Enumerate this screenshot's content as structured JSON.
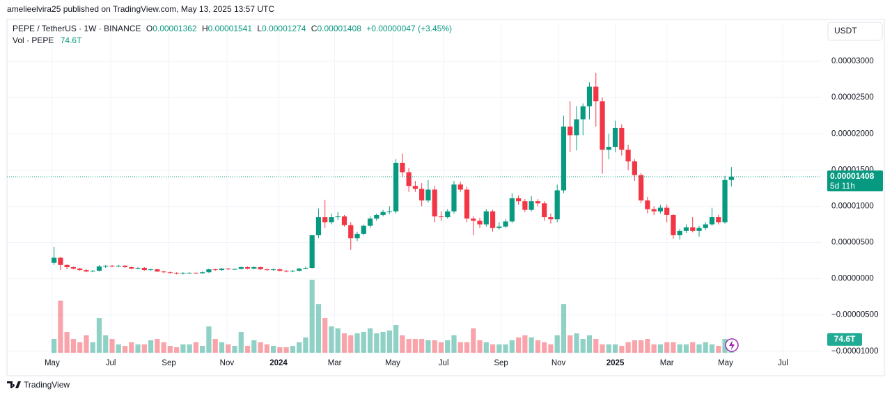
{
  "header": {
    "byline": "amelieelvira25 published on TradingView.com, May 13, 2025 13:57 UTC",
    "brand": "TradingView"
  },
  "chart_data": {
    "type": "candlestick",
    "legend": {
      "symbol": "PEPE / TetherUS · 1W · BINANCE",
      "o": "O",
      "open": "0.00001362",
      "h": "H",
      "high": "0.00001541",
      "l": "L",
      "low": "0.00001274",
      "c": "C",
      "close": "0.00001408",
      "change": "+0.00000047 (+3.45%)",
      "volume_title": "Vol · PEPE",
      "volume": "74.6T"
    },
    "currency": "USDT",
    "price_tag": {
      "label": "0.00001408",
      "countdown": "5d 11h"
    },
    "volume_tag": "74.6T",
    "up_color": "#089981",
    "down_color": "#f23645",
    "open": [
      2.2e-06,
      2.9e-06,
      1.9e-06,
      1.6e-06,
      1.4e-06,
      1.2e-06,
      1e-06,
      1.1e-06,
      1.7e-06,
      1.8e-06,
      1.7e-06,
      1.8e-06,
      1.6e-06,
      1.4e-06,
      1.5e-06,
      1.2e-06,
      1.3e-06,
      1e-06,
      9e-07,
      8e-07,
      7e-07,
      8e-07,
      8e-07,
      7.5e-07,
      9e-07,
      1.3e-06,
      1.2e-06,
      1.4e-06,
      1.3e-06,
      1.35e-06,
      1.6e-06,
      1.4e-06,
      1.6e-06,
      1.3e-06,
      1.2e-06,
      1.3e-06,
      1.1e-06,
      1e-06,
      1.1e-06,
      1.4e-06,
      1.5e-06,
      6e-06,
      8.5e-06,
      7.8e-06,
      8.5e-06,
      8.6e-06,
      7.4e-06,
      5.6e-06,
      6.2e-06,
      7.3e-06,
      8.3e-06,
      8.8e-06,
      9.2e-06,
      9.3e-06,
      1.6e-05,
      1.47e-05,
      1.28e-05,
      1.24e-05,
      1.08e-05,
      1.23e-05,
      8.6e-06,
      8.5e-06,
      9.3e-06,
      1.3e-05,
      1.23e-05,
      8.3e-06,
      8e-06,
      7.5e-06,
      9.3e-06,
      7e-06,
      7.2e-06,
      7.9e-06,
      1.11e-05,
      1.07e-05,
      9.5e-06,
      1.07e-05,
      1.04e-05,
      8.5e-06,
      8.2e-06,
      1.22e-05,
      2.1e-05,
      1.98e-05,
      2.2e-05,
      2.38e-05,
      2.65e-05,
      2.45e-05,
      1.78e-05,
      1.82e-05,
      2.08e-05,
      1.78e-05,
      1.62e-05,
      1.43e-05,
      1.08e-05,
      9.6e-06,
      9.3e-06,
      9.8e-06,
      8.8e-06,
      6e-06,
      6.6e-06,
      7.1e-06,
      6.6e-06,
      7e-06,
      7.5e-06,
      8.5e-06,
      7.8e-06,
      1.362e-05
    ],
    "high": [
      4.4e-06,
      3e-06,
      2e-06,
      1.7e-06,
      1.5e-06,
      1.3e-06,
      1.2e-06,
      1.9e-06,
      1.9e-06,
      1.9e-06,
      1.9e-06,
      1.9e-06,
      1.7e-06,
      1.6e-06,
      1.6e-06,
      1.4e-06,
      1.4e-06,
      1.1e-06,
      1e-06,
      9e-07,
      9e-07,
      9e-07,
      9e-07,
      1e-06,
      1.4e-06,
      1.4e-06,
      1.5e-06,
      1.5e-06,
      1.4e-06,
      1.7e-06,
      1.7e-06,
      1.7e-06,
      1.7e-06,
      1.4e-06,
      1.4e-06,
      1.4e-06,
      1.2e-06,
      1.2e-06,
      1.5e-06,
      1.7e-06,
      6e-06,
      9.7e-06,
      1.09e-05,
      9e-06,
      9.2e-06,
      8.8e-06,
      7.8e-06,
      6.5e-06,
      7.5e-06,
      8.6e-06,
      9e-06,
      9.5e-06,
      1e-05,
      1.65e-05,
      1.73e-05,
      1.53e-05,
      1.35e-05,
      1.32e-05,
      1.36e-05,
      1.28e-05,
      9.3e-06,
      9.6e-06,
      1.35e-05,
      1.34e-05,
      1.27e-05,
      8.6e-06,
      8.4e-06,
      9.6e-06,
      9.5e-06,
      7.8e-06,
      8.2e-06,
      1.18e-05,
      1.15e-05,
      1.1e-05,
      1.14e-05,
      1.1e-05,
      1.07e-05,
      9e-06,
      1.3e-05,
      2.25e-05,
      2.45e-05,
      2.38e-05,
      2.42e-05,
      2.71e-05,
      2.84e-05,
      2.5e-05,
      2e-05,
      2.18e-05,
      2.13e-05,
      1.85e-05,
      1.65e-05,
      1.46e-05,
      1.13e-05,
      1e-05,
      1.02e-05,
      1.02e-05,
      8.9e-06,
      6.9e-06,
      7.5e-06,
      8.5e-06,
      7.3e-06,
      7.8e-06,
      9.8e-06,
      8.8e-06,
      1.42e-05,
      1.541e-05
    ],
    "low": [
      1.9e-06,
      1.2e-06,
      1.3e-06,
      1.3e-06,
      1.1e-06,
      9e-07,
      9e-07,
      1e-06,
      1.5e-06,
      1.6e-06,
      1.6e-06,
      1.5e-06,
      1.3e-06,
      1.3e-06,
      1.1e-06,
      1.1e-06,
      9e-07,
      8e-07,
      7e-07,
      6e-07,
      6e-07,
      7e-07,
      7e-07,
      7e-07,
      8e-07,
      1.1e-06,
      1.1e-06,
      1.2e-06,
      1.2e-06,
      1.3e-06,
      1.3e-06,
      1.3e-06,
      1.2e-06,
      1.1e-06,
      1.1e-06,
      1e-06,
      9e-07,
      9e-07,
      1e-06,
      1.3e-06,
      1.4e-06,
      5.6e-06,
      7e-06,
      7.5e-06,
      8.1e-06,
      7.2e-06,
      4e-06,
      5.2e-06,
      6e-06,
      7e-06,
      8e-06,
      8.6e-06,
      8.9e-06,
      9e-06,
      1.4e-05,
      1.2e-05,
      1.2e-05,
      1e-05,
      1.05e-05,
      7.8e-06,
      8e-06,
      8.3e-06,
      9e-06,
      1.2e-05,
      7.8e-06,
      6e-06,
      7e-06,
      7.2e-06,
      6.5e-06,
      6.8e-06,
      7e-06,
      7.7e-06,
      1.02e-05,
      9.2e-06,
      9.3e-06,
      1e-05,
      8e-06,
      7.6e-06,
      7.8e-06,
      1.18e-05,
      1.75e-05,
      1.77e-05,
      1.98e-05,
      2.2e-05,
      2.1e-05,
      1.45e-05,
      1.65e-05,
      1.75e-05,
      1.7e-05,
      1.5e-05,
      1.35e-05,
      1.04e-05,
      9e-06,
      8.8e-06,
      9e-06,
      7.8e-06,
      5.5e-06,
      5.4e-06,
      6.3e-06,
      6.4e-06,
      5.8e-06,
      6.7e-06,
      7.3e-06,
      7.5e-06,
      7.6e-06,
      1.274e-05
    ],
    "close": [
      2.9e-06,
      1.9e-06,
      1.6e-06,
      1.4e-06,
      1.2e-06,
      1e-06,
      1.1e-06,
      1.7e-06,
      1.8e-06,
      1.7e-06,
      1.8e-06,
      1.6e-06,
      1.4e-06,
      1.5e-06,
      1.2e-06,
      1.3e-06,
      1e-06,
      9e-07,
      8e-07,
      7e-07,
      8e-07,
      8e-07,
      7.5e-07,
      9e-07,
      1.3e-06,
      1.2e-06,
      1.4e-06,
      1.3e-06,
      1.35e-06,
      1.6e-06,
      1.4e-06,
      1.6e-06,
      1.3e-06,
      1.2e-06,
      1.3e-06,
      1.1e-06,
      1e-06,
      1.1e-06,
      1.4e-06,
      1.5e-06,
      6e-06,
      8.5e-06,
      7.8e-06,
      8.5e-06,
      8.6e-06,
      7.4e-06,
      5.6e-06,
      6.2e-06,
      7.3e-06,
      8.3e-06,
      8.8e-06,
      9.2e-06,
      9.3e-06,
      1.6e-05,
      1.47e-05,
      1.28e-05,
      1.24e-05,
      1.08e-05,
      1.23e-05,
      8.6e-06,
      8.5e-06,
      9.3e-06,
      1.3e-05,
      1.23e-05,
      8.3e-06,
      8e-06,
      7.5e-06,
      9.3e-06,
      7e-06,
      7.2e-06,
      7.9e-06,
      1.11e-05,
      1.07e-05,
      9.5e-06,
      1.07e-05,
      1.04e-05,
      8.5e-06,
      8.2e-06,
      1.22e-05,
      2.1e-05,
      1.98e-05,
      2.2e-05,
      2.38e-05,
      2.65e-05,
      2.45e-05,
      1.78e-05,
      1.82e-05,
      2.08e-05,
      1.78e-05,
      1.62e-05,
      1.43e-05,
      1.08e-05,
      9.6e-06,
      9.3e-06,
      9.8e-06,
      8.8e-06,
      6e-06,
      6.6e-06,
      7.1e-06,
      6.6e-06,
      7e-06,
      7.5e-06,
      8.5e-06,
      7.8e-06,
      1.362e-05,
      1.408e-05
    ],
    "volume": [
      78,
      293,
      117,
      78,
      59,
      98,
      59,
      195,
      98,
      78,
      47,
      39,
      59,
      47,
      47,
      70,
      78,
      59,
      39,
      31,
      47,
      47,
      59,
      39,
      148,
      78,
      59,
      47,
      39,
      117,
      39,
      70,
      59,
      47,
      39,
      31,
      31,
      39,
      59,
      86,
      410,
      273,
      195,
      148,
      137,
      109,
      98,
      109,
      117,
      137,
      109,
      117,
      125,
      156,
      98,
      78,
      78,
      78,
      70,
      70,
      59,
      70,
      98,
      59,
      59,
      137,
      70,
      59,
      47,
      47,
      47,
      70,
      86,
      98,
      86,
      70,
      59,
      47,
      98,
      273,
      98,
      109,
      78,
      98,
      78,
      47,
      47,
      47,
      39,
      59,
      70,
      70,
      78,
      47,
      47,
      59,
      59,
      47,
      47,
      59,
      47,
      59,
      47,
      39,
      78,
      74.6
    ],
    "xlim": [
      -7.3,
      119
    ],
    "xticks": [
      {
        "value": -0.3,
        "label": "May"
      },
      {
        "value": 8.8,
        "label": "Jul"
      },
      {
        "value": 17.8,
        "label": "Sep"
      },
      {
        "value": 26.8,
        "label": "Nov"
      },
      {
        "value": 34.8,
        "label": "2024"
      },
      {
        "value": 43.5,
        "label": "Mar"
      },
      {
        "value": 52.5,
        "label": "May"
      },
      {
        "value": 60.4,
        "label": "Jul"
      },
      {
        "value": 69.3,
        "label": "Sep"
      },
      {
        "value": 78.2,
        "label": "Nov"
      },
      {
        "value": 87,
        "label": "2025"
      },
      {
        "value": 95,
        "label": "Mar"
      },
      {
        "value": 104.1,
        "label": "May"
      },
      {
        "value": 113,
        "label": "Jul"
      }
    ],
    "ylim": [
      -1.05e-05,
      3.51e-05
    ],
    "yticks": [
      {
        "value": 3e-05,
        "label": "0.00003000"
      },
      {
        "value": 2.5e-05,
        "label": "0.00002500"
      },
      {
        "value": 2e-05,
        "label": "0.00002000"
      },
      {
        "value": 1.5e-05,
        "label": "0.00001500"
      },
      {
        "value": 1e-05,
        "label": "0.00001000"
      },
      {
        "value": 5e-06,
        "label": "0.00000500"
      },
      {
        "value": 0,
        "label": "0.00000000"
      },
      {
        "value": -5e-06,
        "label": "−0.00000500"
      },
      {
        "value": -1e-05,
        "label": "−0.00001000"
      }
    ],
    "grid": true
  }
}
